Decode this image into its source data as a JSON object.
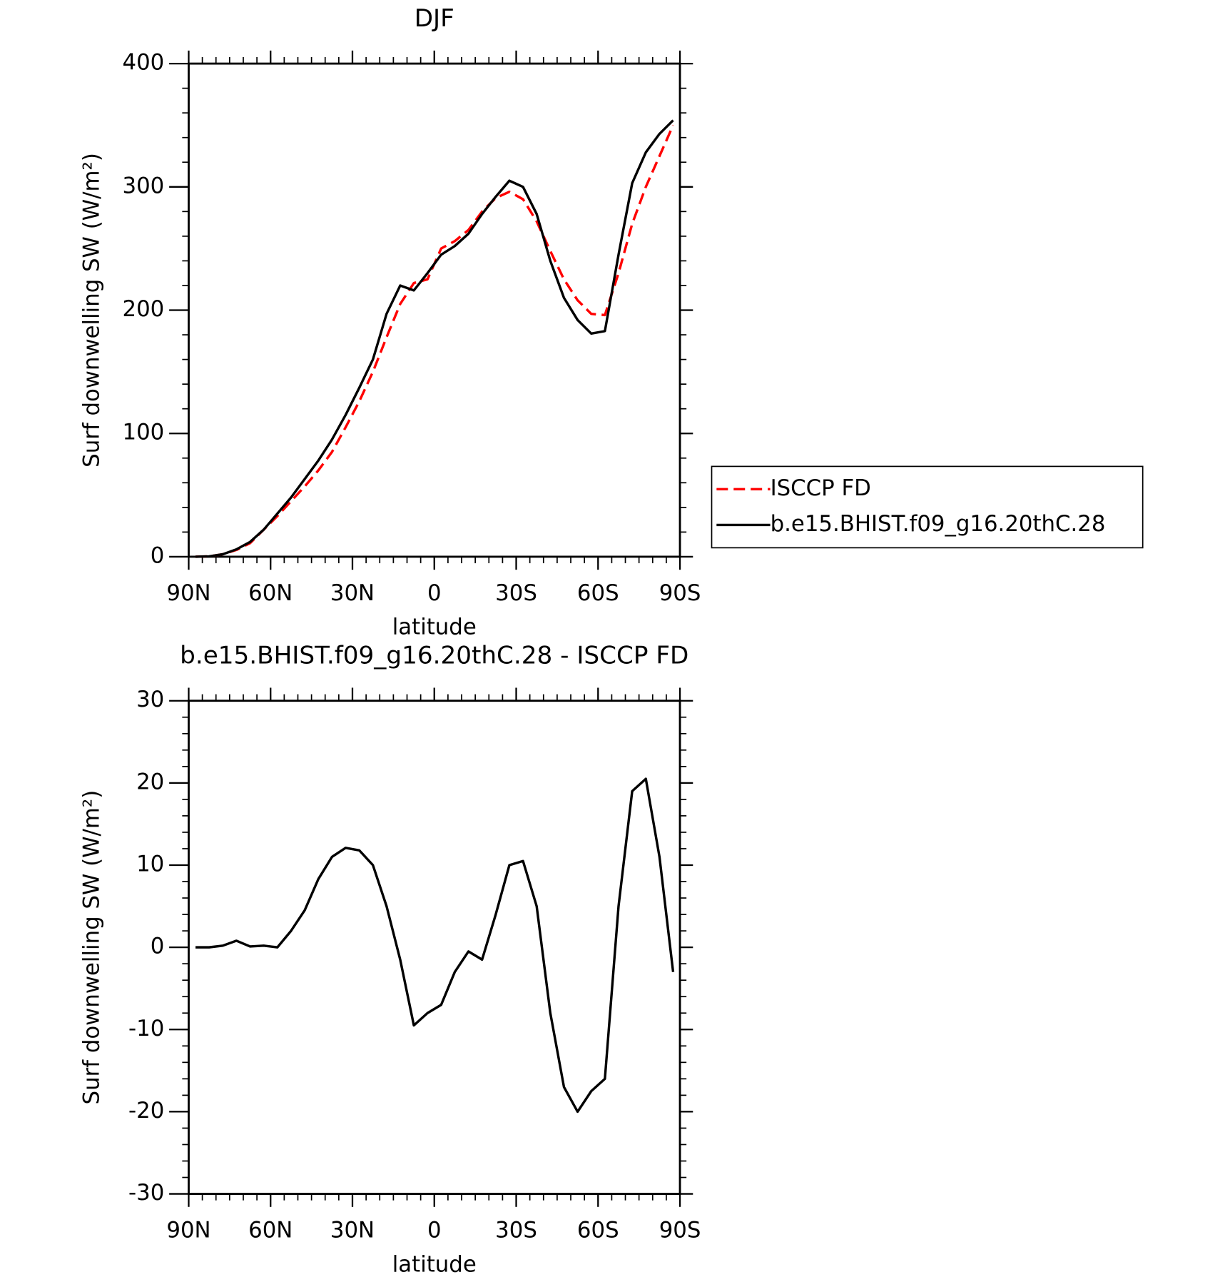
{
  "chart_data": [
    {
      "type": "line",
      "title": "DJF",
      "xlabel": "latitude",
      "ylabel": "Surf downwelling SW (W/m²)",
      "x": [
        87.5,
        82.5,
        77.5,
        72.5,
        67.5,
        62.5,
        57.5,
        52.5,
        47.5,
        42.5,
        37.5,
        32.5,
        27.5,
        22.5,
        17.5,
        12.5,
        7.5,
        2.5,
        -2.5,
        -7.5,
        -12.5,
        -17.5,
        -22.5,
        -27.5,
        -32.5,
        -37.5,
        -42.5,
        -47.5,
        -52.5,
        -57.5,
        -62.5,
        -67.5,
        -72.5,
        -77.5,
        -82.5,
        -87.5
      ],
      "series": [
        {
          "name": "ISCCP FD",
          "color": "#ff0000",
          "dash": true,
          "values": [
            0,
            0.3,
            2,
            5.5,
            11,
            22,
            33,
            45,
            57,
            70,
            85,
            105,
            126,
            150,
            178,
            205,
            222,
            225,
            250,
            256,
            265,
            280,
            291,
            296,
            290,
            272,
            248,
            225,
            208,
            197,
            196,
            230,
            270,
            300,
            325,
            350
          ]
        },
        {
          "name": "b.e15.BHIST.f09_g16.20thC.28",
          "color": "#000000",
          "dash": false,
          "values": [
            0,
            0.3,
            2,
            6,
            12,
            22,
            35,
            48,
            63,
            78,
            95,
            115,
            137,
            160,
            197,
            220,
            216,
            230,
            245,
            252,
            262,
            278,
            292,
            305,
            300,
            278,
            240,
            210,
            192,
            181,
            183,
            245,
            303,
            328,
            343,
            354
          ]
        }
      ],
      "xlim": [
        90,
        -90
      ],
      "xticks": [
        {
          "value": 90,
          "label": "90N"
        },
        {
          "value": 60,
          "label": "60N"
        },
        {
          "value": 30,
          "label": "30N"
        },
        0,
        {
          "value": -30,
          "label": "30S"
        },
        {
          "value": -60,
          "label": "60S"
        },
        {
          "value": -90,
          "label": "90S"
        }
      ],
      "ylim": [
        0,
        400
      ],
      "yticks": [
        0,
        100,
        200,
        300,
        400
      ],
      "legend": "right"
    },
    {
      "type": "line",
      "title": "b.e15.BHIST.f09_g16.20thC.28 - ISCCP FD",
      "xlabel": "latitude",
      "ylabel": "Surf downwelling SW (W/m²)",
      "x": [
        87.5,
        82.5,
        77.5,
        72.5,
        67.5,
        62.5,
        57.5,
        52.5,
        47.5,
        42.5,
        37.5,
        32.5,
        27.5,
        22.5,
        17.5,
        12.5,
        7.5,
        2.5,
        -2.5,
        -7.5,
        -12.5,
        -17.5,
        -22.5,
        -27.5,
        -32.5,
        -37.5,
        -42.5,
        -47.5,
        -52.5,
        -57.5,
        -62.5,
        -67.5,
        -72.5,
        -77.5,
        -82.5,
        -87.5
      ],
      "series": [
        {
          "color": "#000000",
          "dash": false,
          "values": [
            0,
            0,
            0.2,
            0.8,
            0.1,
            0.2,
            0,
            2,
            4.5,
            8.3,
            11,
            12.1,
            11.8,
            10,
            5,
            -1.5,
            -9.5,
            -8,
            -7,
            -3,
            -0.5,
            -1.5,
            4,
            10,
            10.5,
            5,
            -8,
            -17,
            -20,
            -17.5,
            -16,
            5,
            19,
            20.5,
            11,
            -3
          ]
        }
      ],
      "xlim": [
        90,
        -90
      ],
      "xticks": [
        {
          "value": 90,
          "label": "90N"
        },
        {
          "value": 60,
          "label": "60N"
        },
        {
          "value": 30,
          "label": "30N"
        },
        0,
        {
          "value": -30,
          "label": "30S"
        },
        {
          "value": -60,
          "label": "60S"
        },
        {
          "value": -90,
          "label": "90S"
        }
      ],
      "ylim": [
        -30,
        30
      ],
      "yticks": [
        -30,
        -20,
        -10,
        0,
        10,
        20,
        30
      ]
    }
  ]
}
